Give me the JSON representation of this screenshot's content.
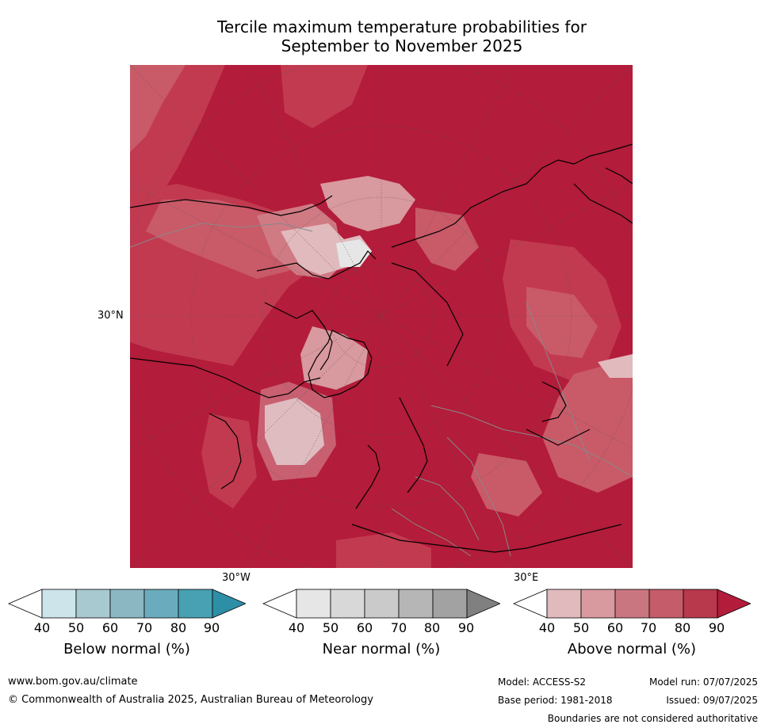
{
  "title": {
    "line1": "Tercile maximum temperature probabilities for",
    "line2": "September to November 2025"
  },
  "map": {
    "lat_label": "30°N",
    "lon_left_label": "30°W",
    "lon_right_label": "30°E",
    "colors": {
      "above_90": "#b31c3a",
      "above_80": "#c23a50",
      "above_70": "#c95a68",
      "above_60": "#d07a84",
      "above_50": "#d8999f",
      "above_40": "#e1babd",
      "near": "#e6e6e6",
      "coast": "#000000",
      "borders": "#888888"
    }
  },
  "colorbars": [
    {
      "label": "Below normal (%)",
      "ticks": [
        "40",
        "50",
        "60",
        "70",
        "80",
        "90"
      ],
      "colors": [
        "#ffffff",
        "#cce4ea",
        "#a8c9d0",
        "#8bb7c3",
        "#6aacbd",
        "#48a1b3",
        "#2c8fa5"
      ]
    },
    {
      "label": "Near normal (%)",
      "ticks": [
        "40",
        "50",
        "60",
        "70",
        "80",
        "90"
      ],
      "colors": [
        "#ffffff",
        "#e6e6e6",
        "#d8d8d8",
        "#cacaca",
        "#b6b6b6",
        "#a2a2a2",
        "#808080"
      ]
    },
    {
      "label": "Above normal (%)",
      "ticks": [
        "40",
        "50",
        "60",
        "70",
        "80",
        "90"
      ],
      "colors": [
        "#ffffff",
        "#e1babd",
        "#d8999f",
        "#ca7680",
        "#c45c69",
        "#b8384c",
        "#b31c3a"
      ]
    }
  ],
  "footer": {
    "url": "www.bom.gov.au/climate",
    "copyright": "© Commonwealth of Australia 2025, Australian Bureau of Meteorology",
    "model": "Model: ACCESS-S2",
    "base_period": "Base period: 1981-2018",
    "model_run": "Model run: 07/07/2025",
    "issued": "Issued: 09/07/2025",
    "disclaimer": "Boundaries are not considered authoritative"
  }
}
